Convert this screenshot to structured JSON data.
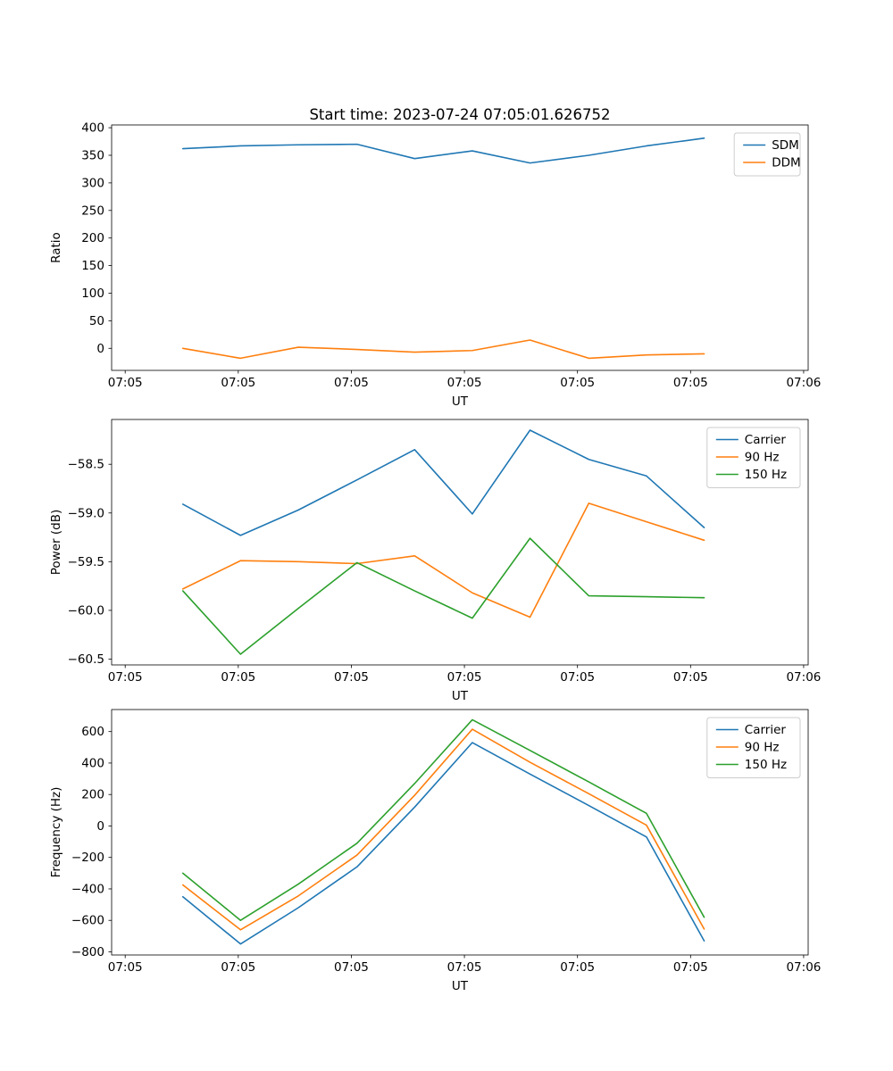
{
  "figure": {
    "background": "#ffffff"
  },
  "chart_data": [
    {
      "type": "line",
      "title": "Start time: 2023-07-24 07:05:01.626752",
      "xlabel": "UT",
      "ylabel": "Ratio",
      "legend_position": "upper right",
      "grid": false,
      "xlim": [
        -1.2,
        60.4
      ],
      "ylim": [
        -40,
        405
      ],
      "xticks": [
        0,
        10,
        20,
        30,
        40,
        50,
        60
      ],
      "x_tick_labels": [
        "07:05",
        "07:05",
        "07:05",
        "07:05",
        "07:05",
        "07:05",
        "07:06"
      ],
      "ytick_values": [
        0,
        50,
        100,
        150,
        200,
        250,
        300,
        350,
        400
      ],
      "ytick_labels": [
        "0",
        "50",
        "100",
        "150",
        "200",
        "250",
        "300",
        "350",
        "400"
      ],
      "x": [
        5.1,
        10.2,
        15.3,
        20.5,
        25.6,
        30.7,
        35.8,
        41.0,
        46.1,
        51.2
      ],
      "series": [
        {
          "name": "SDM",
          "color": "#1f77b4",
          "values": [
            362,
            367,
            369,
            370,
            344,
            358,
            336,
            350,
            367,
            381
          ]
        },
        {
          "name": "DDM",
          "color": "#ff7f0e",
          "values": [
            0,
            -18,
            2,
            -2,
            -7,
            -4,
            15,
            -18,
            -12,
            -10
          ]
        }
      ]
    },
    {
      "type": "line",
      "title": "",
      "xlabel": "UT",
      "ylabel": "Power (dB)",
      "legend_position": "upper right",
      "grid": false,
      "xlim": [
        -1.2,
        60.4
      ],
      "ylim": [
        -60.56,
        -58.04
      ],
      "xticks": [
        0,
        10,
        20,
        30,
        40,
        50,
        60
      ],
      "x_tick_labels": [
        "07:05",
        "07:05",
        "07:05",
        "07:05",
        "07:05",
        "07:05",
        "07:06"
      ],
      "ytick_values": [
        -58.5,
        -59.0,
        -59.5,
        -60.0,
        -60.5
      ],
      "ytick_labels": [
        "−58.5",
        "−59.0",
        "−59.5",
        "−60.0",
        "−60.5"
      ],
      "x": [
        5.1,
        10.2,
        15.3,
        20.5,
        25.6,
        30.7,
        35.8,
        41.0,
        46.1,
        51.2
      ],
      "series": [
        {
          "name": "Carrier",
          "color": "#1f77b4",
          "values": [
            -58.91,
            -59.23,
            -58.97,
            -58.66,
            -58.35,
            -59.01,
            -58.15,
            -58.45,
            -58.62,
            -59.15
          ]
        },
        {
          "name": "90 Hz",
          "color": "#ff7f0e",
          "values": [
            -59.78,
            -59.49,
            -59.5,
            -59.52,
            -59.44,
            -59.82,
            -60.07,
            -58.9,
            -59.09,
            -59.28
          ]
        },
        {
          "name": "150 Hz",
          "color": "#2ca02c",
          "values": [
            -59.8,
            -60.45,
            -59.98,
            -59.51,
            -59.8,
            -60.08,
            -59.26,
            -59.85,
            -59.86,
            -59.87
          ]
        }
      ]
    },
    {
      "type": "line",
      "title": "",
      "xlabel": "UT",
      "ylabel": "Frequency (Hz)",
      "legend_position": "upper right",
      "grid": false,
      "xlim": [
        -1.2,
        60.4
      ],
      "ylim": [
        -820,
        740
      ],
      "xticks": [
        0,
        10,
        20,
        30,
        40,
        50,
        60
      ],
      "x_tick_labels": [
        "07:05",
        "07:05",
        "07:05",
        "07:05",
        "07:05",
        "07:05",
        "07:06"
      ],
      "ytick_values": [
        600,
        400,
        200,
        0,
        -200,
        -400,
        -600,
        -800
      ],
      "ytick_labels": [
        "600",
        "400",
        "200",
        "0",
        "−200",
        "−400",
        "−600",
        "−800"
      ],
      "x": [
        5.1,
        10.2,
        15.3,
        20.5,
        25.6,
        30.7,
        35.8,
        41.0,
        46.1,
        51.2
      ],
      "series": [
        {
          "name": "Carrier",
          "color": "#1f77b4",
          "values": [
            -450,
            -750,
            -520,
            -260,
            120,
            530,
            330,
            130,
            -70,
            -730
          ]
        },
        {
          "name": "90 Hz",
          "color": "#ff7f0e",
          "values": [
            -375,
            -660,
            -445,
            -185,
            195,
            615,
            405,
            205,
            5,
            -655
          ]
        },
        {
          "name": "150 Hz",
          "color": "#2ca02c",
          "values": [
            -300,
            -600,
            -370,
            -110,
            270,
            675,
            480,
            280,
            80,
            -580
          ]
        }
      ]
    }
  ]
}
